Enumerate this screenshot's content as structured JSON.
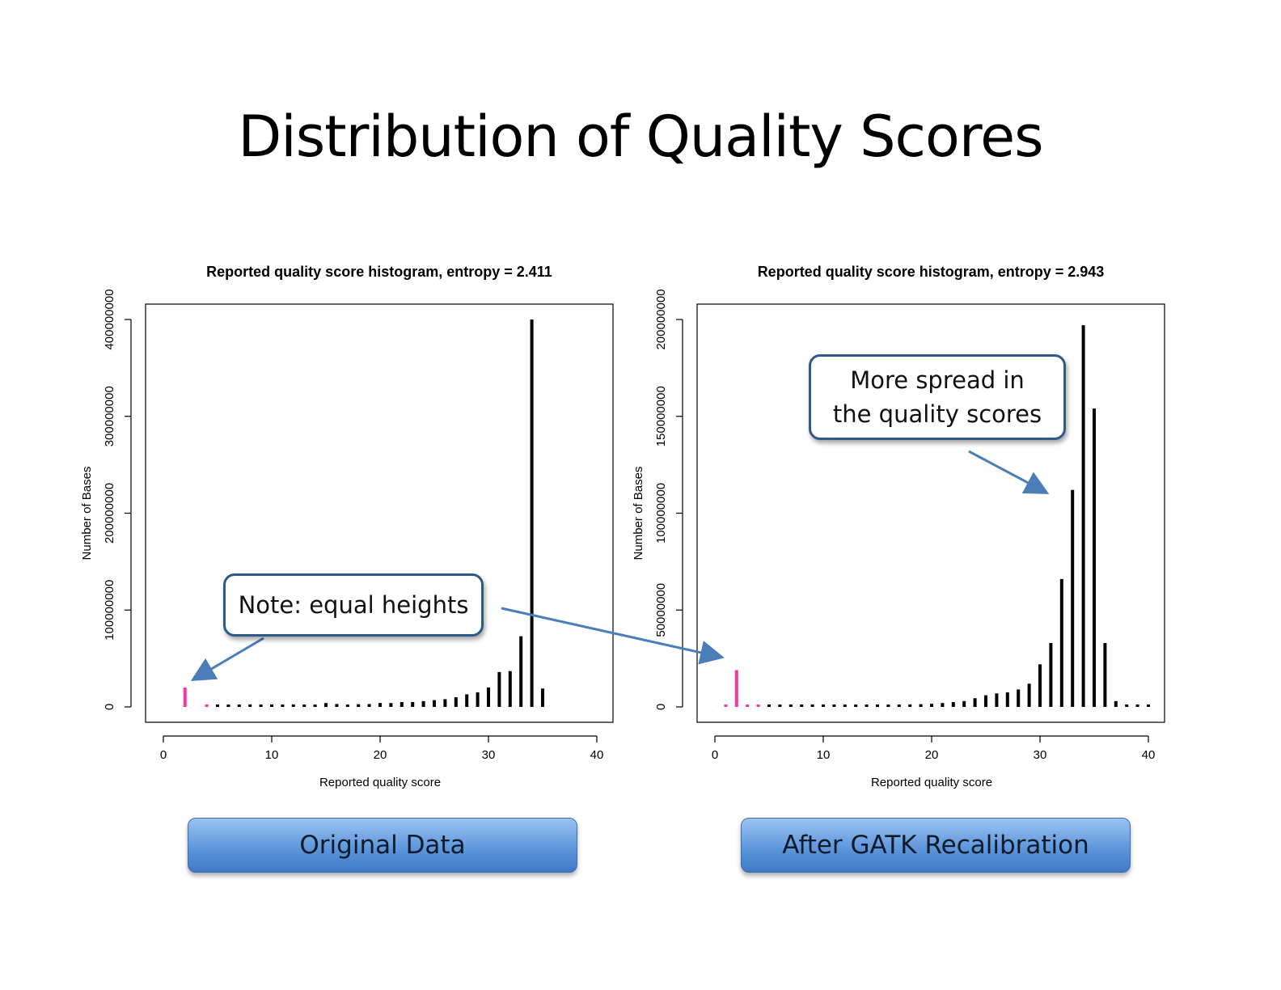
{
  "slide": {
    "title": "Distribution of Quality Scores"
  },
  "labels": {
    "left": "Original Data",
    "right": "After GATK Recalibration"
  },
  "callouts": {
    "note": "Note: equal heights",
    "spread_line1": "More spread in",
    "spread_line2": "the quality scores"
  },
  "colors": {
    "bar": "#000000",
    "highlight": "#ff3399",
    "arrow": "#4a7eb8",
    "pill": "#5f97dc",
    "callout_border": "#2d5a86"
  },
  "chart_data": [
    {
      "type": "bar",
      "title": "Reported quality score histogram, entropy =  2.411",
      "xlabel": "Reported quality score",
      "ylabel": "Number of Bases",
      "xlim": [
        0,
        40
      ],
      "ylim": [
        0,
        400000000
      ],
      "xticks": [
        0,
        10,
        20,
        30,
        40
      ],
      "yticks": [
        0,
        100000000,
        200000000,
        300000000,
        400000000
      ],
      "ytick_labels": [
        "0",
        "100000000",
        "200000000",
        "300000000",
        "400000000"
      ],
      "x": [
        2,
        4,
        5,
        6,
        7,
        8,
        9,
        10,
        11,
        12,
        13,
        14,
        15,
        16,
        17,
        18,
        19,
        20,
        21,
        22,
        23,
        24,
        25,
        26,
        27,
        28,
        29,
        30,
        31,
        32,
        33,
        34,
        35
      ],
      "values": [
        20000000,
        800000,
        1000000,
        1000000,
        1100000,
        1200000,
        1300000,
        1400000,
        1500000,
        1600000,
        1700000,
        2000000,
        4000000,
        3000000,
        2500000,
        2800000,
        3000000,
        4000000,
        4000000,
        5000000,
        5000000,
        6000000,
        7000000,
        8000000,
        10000000,
        13000000,
        15000000,
        20000000,
        36000000,
        37000000,
        73000000,
        400000000,
        19000000
      ],
      "highlight_x": [
        2,
        4
      ]
    },
    {
      "type": "bar",
      "title": "Reported quality score histogram, entropy =  2.943",
      "xlabel": "Reported quality score",
      "ylabel": "Number of Bases",
      "xlim": [
        0,
        40
      ],
      "ylim": [
        0,
        200000000
      ],
      "xticks": [
        0,
        10,
        20,
        30,
        40
      ],
      "yticks": [
        0,
        50000000,
        100000000,
        150000000,
        200000000
      ],
      "ytick_labels": [
        "0",
        "50000000",
        "100000000",
        "150000000",
        "200000000"
      ],
      "x": [
        1,
        2,
        3,
        4,
        5,
        6,
        7,
        8,
        9,
        10,
        11,
        12,
        13,
        14,
        15,
        16,
        17,
        18,
        19,
        20,
        21,
        22,
        23,
        24,
        25,
        26,
        27,
        28,
        29,
        30,
        31,
        32,
        33,
        34,
        35,
        36,
        37,
        38,
        39,
        40
      ],
      "values": [
        500000,
        19000000,
        500000,
        500000,
        500000,
        500000,
        500000,
        500000,
        600000,
        600000,
        700000,
        700000,
        800000,
        800000,
        900000,
        1000000,
        1100000,
        1200000,
        1400000,
        1600000,
        2000000,
        2500000,
        3000000,
        4500000,
        6000000,
        7000000,
        7500000,
        9000000,
        12000000,
        22000000,
        33000000,
        66000000,
        112000000,
        197000000,
        154000000,
        33000000,
        3000000,
        700000,
        500000,
        300000
      ],
      "highlight_x": [
        1,
        2,
        3,
        4
      ]
    }
  ]
}
